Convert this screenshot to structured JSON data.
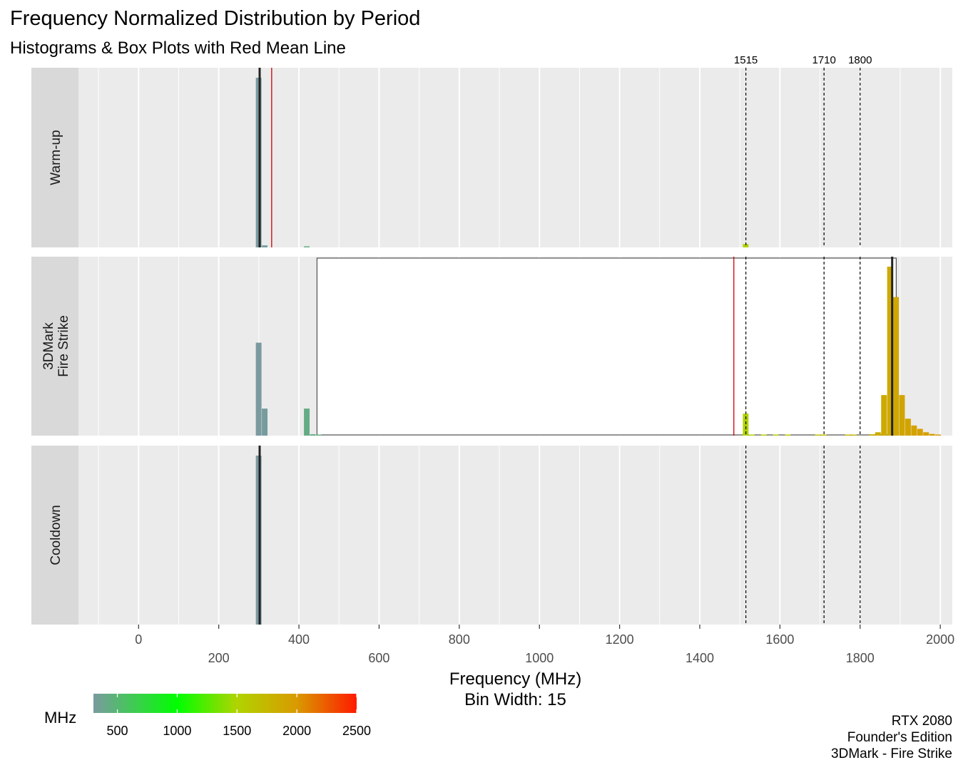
{
  "title": "Frequency Normalized Distribution by Period",
  "subtitle": "Histograms & Box Plots with Red Mean Line",
  "caption": [
    "RTX 2080",
    "Founder's Edition",
    "3DMark - Fire Strike"
  ],
  "chart_data": {
    "type": "histogram",
    "xlabel": "Frequency (MHz)",
    "xlabel_sub": "Bin Width: 15",
    "xlim": [
      -150,
      2030
    ],
    "x_ticks_top": [
      0,
      400,
      800,
      1200,
      1600,
      2000
    ],
    "x_ticks_bottom": [
      200,
      600,
      1000,
      1400,
      1800
    ],
    "reference_lines": [
      {
        "x": 1515,
        "label": "1515"
      },
      {
        "x": 1710,
        "label": "1710"
      },
      {
        "x": 1800,
        "label": "1800"
      }
    ],
    "color_legend": {
      "title": "MHz",
      "range": [
        300,
        2500
      ],
      "ticks": [
        500,
        1000,
        1500,
        2000,
        2500
      ],
      "stops": [
        {
          "value": 300,
          "color": "#7a9aa0"
        },
        {
          "value": 1000,
          "color": "#00ff00"
        },
        {
          "value": 1500,
          "color": "#b0d400"
        },
        {
          "value": 2000,
          "color": "#d99a00"
        },
        {
          "value": 2500,
          "color": "#ff1a00"
        }
      ]
    },
    "panels": [
      {
        "label": "Warm-up",
        "bins": [
          {
            "x": 300,
            "density": 1.0
          },
          {
            "x": 315,
            "density": 0.012
          },
          {
            "x": 420,
            "density": 0.004
          },
          {
            "x": 1515,
            "density": 0.02
          }
        ],
        "mean": 332,
        "median": 302,
        "box": null
      },
      {
        "label": "3DMark\nFire Strike",
        "bins": [
          {
            "x": 300,
            "density": 0.55
          },
          {
            "x": 315,
            "density": 0.16
          },
          {
            "x": 420,
            "density": 0.16
          },
          {
            "x": 435,
            "density": 0.008
          },
          {
            "x": 450,
            "density": 0.004
          },
          {
            "x": 1515,
            "density": 0.13
          },
          {
            "x": 1530,
            "density": 0.006
          },
          {
            "x": 1560,
            "density": 0.006
          },
          {
            "x": 1590,
            "density": 0.006
          },
          {
            "x": 1620,
            "density": 0.006
          },
          {
            "x": 1695,
            "density": 0.006
          },
          {
            "x": 1710,
            "density": 0.006
          },
          {
            "x": 1770,
            "density": 0.006
          },
          {
            "x": 1785,
            "density": 0.006
          },
          {
            "x": 1830,
            "density": 0.008
          },
          {
            "x": 1845,
            "density": 0.02
          },
          {
            "x": 1860,
            "density": 0.24
          },
          {
            "x": 1875,
            "density": 1.0
          },
          {
            "x": 1890,
            "density": 0.82
          },
          {
            "x": 1905,
            "density": 0.24
          },
          {
            "x": 1920,
            "density": 0.1
          },
          {
            "x": 1935,
            "density": 0.06
          },
          {
            "x": 1950,
            "density": 0.04
          },
          {
            "x": 1965,
            "density": 0.02
          },
          {
            "x": 1980,
            "density": 0.01
          },
          {
            "x": 1995,
            "density": 0.006
          }
        ],
        "mean": 1485,
        "median": 1880,
        "box": {
          "q1": 445,
          "q3": 1890
        }
      },
      {
        "label": "Cooldown",
        "bins": [
          {
            "x": 300,
            "density": 1.0
          }
        ],
        "mean": 303,
        "median": 302,
        "box": null
      }
    ]
  }
}
